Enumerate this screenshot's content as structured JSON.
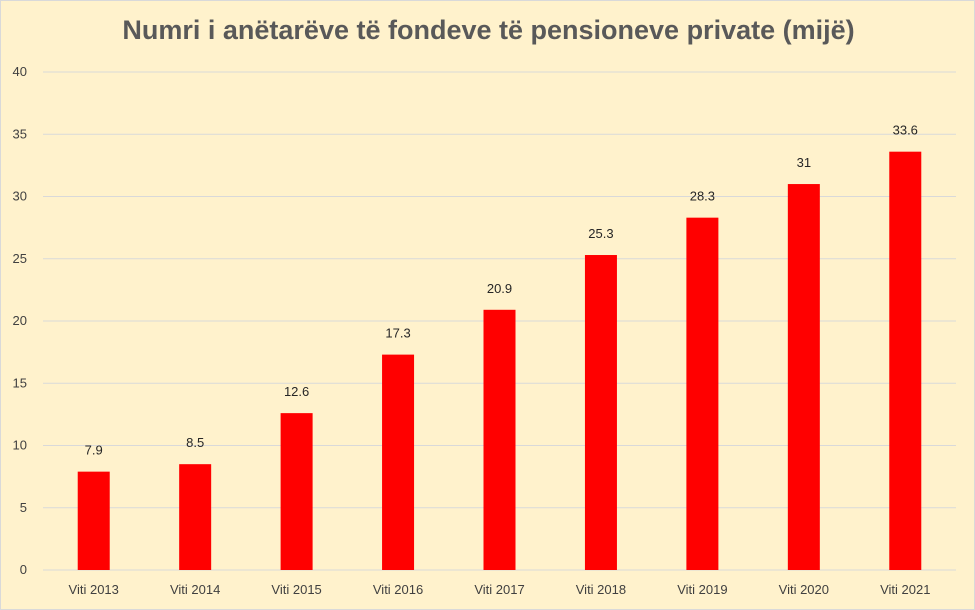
{
  "chart_data": {
    "type": "bar",
    "title": "Numri i anëtarëve të fondeve të pensioneve private (mijë)",
    "categories": [
      "Viti 2013",
      "Viti 2014",
      "Viti 2015",
      "Viti 2016",
      "Viti 2017",
      "Viti 2018",
      "Viti 2019",
      "Viti 2020",
      "Viti 2021"
    ],
    "values": [
      7.9,
      8.5,
      12.6,
      17.3,
      20.9,
      25.3,
      28.3,
      31,
      33.6
    ],
    "data_labels": [
      "7.9",
      "8.5",
      "12.6",
      "17.3",
      "20.9",
      "25.3",
      "28.3",
      "31",
      "33.6"
    ],
    "xlabel": "",
    "ylabel": "",
    "ylim": [
      0,
      40
    ],
    "y_ticks": [
      0,
      5,
      10,
      15,
      20,
      25,
      30,
      35,
      40
    ],
    "grid": true,
    "legend": "none",
    "colors": {
      "bar": "#ff0000",
      "background": "#fff2cc",
      "grid": "#d9d9d9",
      "title": "#595959"
    }
  }
}
